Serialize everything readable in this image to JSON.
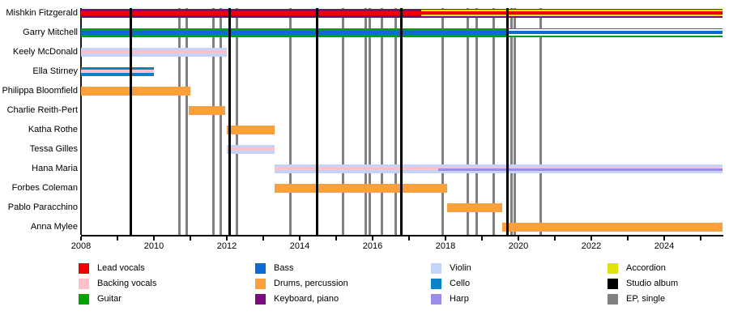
{
  "colors": {
    "lead_vocals": "#ee0000",
    "backing_vocals": "#ffc0cb",
    "guitar": "#00a302",
    "bass": "#0a6cd2",
    "drums": "#f9a03c",
    "keyboard": "#7d0c7e",
    "violin": "#c4d4f8",
    "cello": "#0a82c8",
    "harp": "#9a8ce8",
    "accordion": "#e0e20c",
    "studio_album": "#000000",
    "ep_single": "#808080",
    "gap": "#ffffff"
  },
  "chart_data": {
    "type": "bar",
    "subtype": "band-member-timeline-gantt",
    "title": "",
    "x_axis": {
      "min": 2008,
      "max": 2025.6,
      "labeled_years": [
        2008,
        2010,
        2012,
        2014,
        2016,
        2018,
        2020,
        2022,
        2024
      ],
      "minor_tick_every_year": true,
      "first_tick_year": 2008,
      "last_tick_year": 2025
    },
    "members": [
      {
        "name": "Mishkin Fitzgerald",
        "roles": "lead vocals; keyboard, piano; accordion from 2017",
        "segments": [
          {
            "from": 2008,
            "to": 2017.33,
            "layers": [
              {
                "role": "keyboard",
                "h": 3
              },
              {
                "role": "lead_vocals",
                "h": 5
              },
              {
                "role": "keyboard",
                "h": 3
              }
            ]
          },
          {
            "from": 2017.33,
            "to": 2025.6,
            "layers": [
              {
                "role": "keyboard",
                "h": 1.5
              },
              {
                "role": "accordion",
                "h": 2
              },
              {
                "role": "lead_vocals",
                "h": 4
              },
              {
                "role": "accordion",
                "h": 2
              },
              {
                "role": "keyboard",
                "h": 1.5
              }
            ]
          }
        ]
      },
      {
        "name": "Garry Mitchell",
        "roles": "guitar and bass; bass lead from 2019.7",
        "segments": [
          {
            "from": 2008,
            "to": 2019.7,
            "layers": [
              {
                "role": "guitar",
                "h": 3
              },
              {
                "role": "bass",
                "h": 5
              },
              {
                "role": "guitar",
                "h": 3
              }
            ]
          },
          {
            "from": 2019.7,
            "to": 2025.6,
            "layers": [
              {
                "role": "guitar",
                "h": 1.5
              },
              {
                "role": "gap",
                "h": 2
              },
              {
                "role": "bass",
                "h": 4
              },
              {
                "role": "gap",
                "h": 2
              },
              {
                "role": "guitar",
                "h": 1.5
              }
            ]
          }
        ]
      },
      {
        "name": "Keely McDonald",
        "roles": "violin, backing vocals",
        "segments": [
          {
            "from": 2008,
            "to": 2012,
            "layers": [
              {
                "role": "violin",
                "h": 3.5
              },
              {
                "role": "backing_vocals",
                "h": 4
              },
              {
                "role": "violin",
                "h": 3.5
              }
            ]
          }
        ]
      },
      {
        "name": "Ella Stirney",
        "roles": "cello, backing vocals",
        "segments": [
          {
            "from": 2008,
            "to": 2010,
            "layers": [
              {
                "role": "cello",
                "h": 3.5
              },
              {
                "role": "backing_vocals",
                "h": 4
              },
              {
                "role": "cello",
                "h": 3.5
              }
            ]
          }
        ]
      },
      {
        "name": "Philippa Bloomfield",
        "roles": "drums, percussion",
        "segments": [
          {
            "from": 2008,
            "to": 2011,
            "layers": [
              {
                "role": "drums",
                "h": 11
              }
            ]
          }
        ]
      },
      {
        "name": "Charlie Reith-Pert",
        "roles": "drums, percussion",
        "segments": [
          {
            "from": 2010.95,
            "to": 2011.95,
            "layers": [
              {
                "role": "drums",
                "h": 11
              }
            ]
          }
        ]
      },
      {
        "name": "Katha Rothe",
        "roles": "drums, percussion",
        "segments": [
          {
            "from": 2012,
            "to": 2013.3,
            "layers": [
              {
                "role": "drums",
                "h": 11
              }
            ]
          }
        ]
      },
      {
        "name": "Tessa Gilles",
        "roles": "violin, backing vocals",
        "segments": [
          {
            "from": 2012,
            "to": 2013.3,
            "layers": [
              {
                "role": "violin",
                "h": 3.5
              },
              {
                "role": "backing_vocals",
                "h": 4
              },
              {
                "role": "violin",
                "h": 3.5
              }
            ]
          }
        ]
      },
      {
        "name": "Hana Maria",
        "roles": "violin, backing vocals; harp from ~2017.8",
        "segments": [
          {
            "from": 2013.3,
            "to": 2017.8,
            "layers": [
              {
                "role": "violin",
                "h": 3.5
              },
              {
                "role": "backing_vocals",
                "h": 4
              },
              {
                "role": "violin",
                "h": 3.5
              }
            ]
          },
          {
            "from": 2017.8,
            "to": 2025.6,
            "layers": [
              {
                "role": "violin",
                "h": 3
              },
              {
                "role": "backing_vocals",
                "h": 2.5
              },
              {
                "role": "harp",
                "h": 2.5
              },
              {
                "role": "violin",
                "h": 3
              }
            ]
          }
        ]
      },
      {
        "name": "Forbes Coleman",
        "roles": "drums, percussion",
        "segments": [
          {
            "from": 2013.3,
            "to": 2018.05,
            "layers": [
              {
                "role": "drums",
                "h": 11
              }
            ]
          }
        ]
      },
      {
        "name": "Pablo Paracchino",
        "roles": "drums, percussion",
        "segments": [
          {
            "from": 2018.05,
            "to": 2019.55,
            "layers": [
              {
                "role": "drums",
                "h": 11
              }
            ]
          }
        ]
      },
      {
        "name": "Anna Mylee",
        "roles": "drums, percussion",
        "segments": [
          {
            "from": 2019.55,
            "to": 2025.6,
            "layers": [
              {
                "role": "drums",
                "h": 11
              }
            ]
          }
        ]
      }
    ],
    "releases": {
      "studio_albums": [
        2009.37,
        2012.07,
        2014.48,
        2016.78,
        2019.7
      ],
      "eps_singles": [
        2010.7,
        2010.9,
        2011.63,
        2011.83,
        2012.27,
        2013.74,
        2015.18,
        2015.81,
        2015.93,
        2016.26,
        2016.64,
        2017.93,
        2018.6,
        2018.86,
        2019.33,
        2019.82,
        2019.9,
        2020.6
      ]
    }
  },
  "legend": {
    "columns": [
      {
        "items": [
          {
            "label": "Lead vocals",
            "color_key": "lead_vocals"
          },
          {
            "label": "Backing vocals",
            "color_key": "backing_vocals"
          },
          {
            "label": "Guitar",
            "color_key": "guitar"
          }
        ]
      },
      {
        "items": [
          {
            "label": "Bass",
            "color_key": "bass"
          },
          {
            "label": "Drums, percussion",
            "color_key": "drums"
          },
          {
            "label": "Keyboard, piano",
            "color_key": "keyboard"
          }
        ]
      },
      {
        "items": [
          {
            "label": "Violin",
            "color_key": "violin"
          },
          {
            "label": "Cello",
            "color_key": "cello"
          },
          {
            "label": "Harp",
            "color_key": "harp"
          }
        ]
      },
      {
        "items": [
          {
            "label": "Accordion",
            "color_key": "accordion"
          },
          {
            "label": "Studio album",
            "color_key": "studio_album"
          },
          {
            "label": "EP, single",
            "color_key": "ep_single"
          }
        ]
      }
    ]
  }
}
